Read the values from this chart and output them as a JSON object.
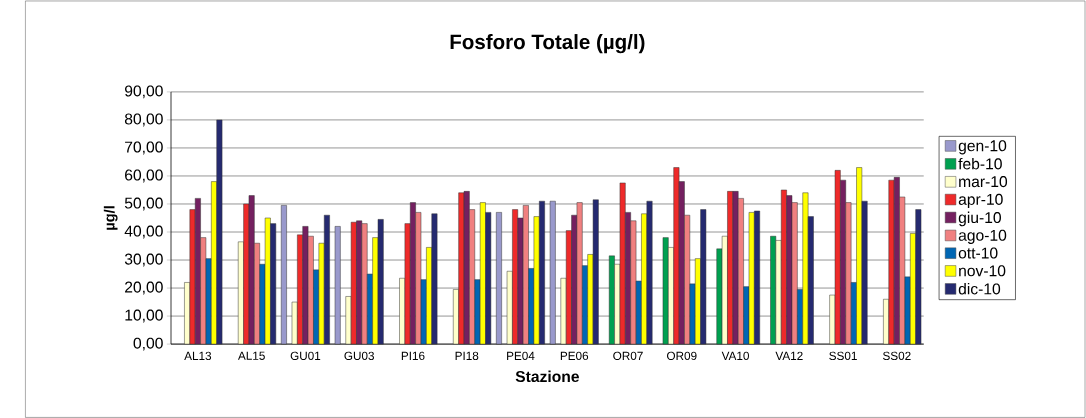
{
  "chart_data": {
    "type": "bar",
    "title": "Fosforo Totale (µg/l)",
    "xlabel": "Stazione",
    "ylabel": "µg/l",
    "categories": [
      "AL13",
      "AL15",
      "GU01",
      "GU03",
      "PI16",
      "PI18",
      "PE04",
      "PE06",
      "OR07",
      "OR09",
      "VA10",
      "VA12",
      "SS01",
      "SS02"
    ],
    "series": [
      {
        "name": "gen-10",
        "color": "#9999cc",
        "values": [
          null,
          null,
          49.5,
          42,
          null,
          null,
          47,
          51,
          null,
          null,
          null,
          null,
          null,
          null
        ]
      },
      {
        "name": "feb-10",
        "color": "#00a050",
        "values": [
          null,
          null,
          null,
          null,
          null,
          null,
          null,
          null,
          31.5,
          38,
          34,
          38.5,
          null,
          null
        ]
      },
      {
        "name": "mar-10",
        "color": "#ffffcc",
        "values": [
          22,
          36.5,
          15,
          17,
          23.5,
          19.5,
          26,
          23.5,
          28.5,
          34.5,
          38.5,
          37,
          17.5,
          16
        ]
      },
      {
        "name": "apr-10",
        "color": "#ee2a2a",
        "values": [
          48,
          50,
          39,
          43.5,
          43,
          54,
          48,
          40.5,
          57.5,
          63,
          54.5,
          55,
          62,
          58.5
        ]
      },
      {
        "name": "giu-10",
        "color": "#742060",
        "values": [
          52,
          53,
          42,
          44,
          50.5,
          54.5,
          45,
          46,
          47,
          58,
          54.5,
          53,
          58.5,
          59.5
        ]
      },
      {
        "name": "ago-10",
        "color": "#f08080",
        "values": [
          38,
          36,
          38.5,
          43,
          47,
          48,
          49.5,
          50.5,
          44,
          46,
          52,
          50.5,
          50.5,
          52.5
        ]
      },
      {
        "name": "ott-10",
        "color": "#0066b3",
        "values": [
          30.5,
          28.5,
          26.5,
          25,
          23,
          23,
          27,
          28,
          22.5,
          21.5,
          20.5,
          19.5,
          22,
          24
        ]
      },
      {
        "name": "nov-10",
        "color": "#ffff00",
        "values": [
          58,
          45,
          36,
          38,
          34.5,
          50.5,
          45.5,
          32,
          46.5,
          30.5,
          47,
          54,
          63,
          39.5
        ]
      },
      {
        "name": "dic-10",
        "color": "#252a70",
        "values": [
          80,
          43,
          46,
          44.5,
          46.5,
          47,
          51,
          51.5,
          51,
          48,
          47.5,
          45.5,
          51,
          48
        ]
      }
    ],
    "ylim": [
      0,
      90
    ],
    "yticks": [
      {
        "value": 0,
        "label": "0,00"
      },
      {
        "value": 10,
        "label": "10,00"
      },
      {
        "value": 20,
        "label": "20,00"
      },
      {
        "value": 30,
        "label": "30,00"
      },
      {
        "value": 40,
        "label": "40,00"
      },
      {
        "value": 50,
        "label": "50,00"
      },
      {
        "value": 60,
        "label": "60,00"
      },
      {
        "value": 70,
        "label": "70,00"
      },
      {
        "value": 80,
        "label": "80,00"
      },
      {
        "value": 90,
        "label": "90,00"
      }
    ],
    "grid": "y",
    "legend": "right"
  }
}
